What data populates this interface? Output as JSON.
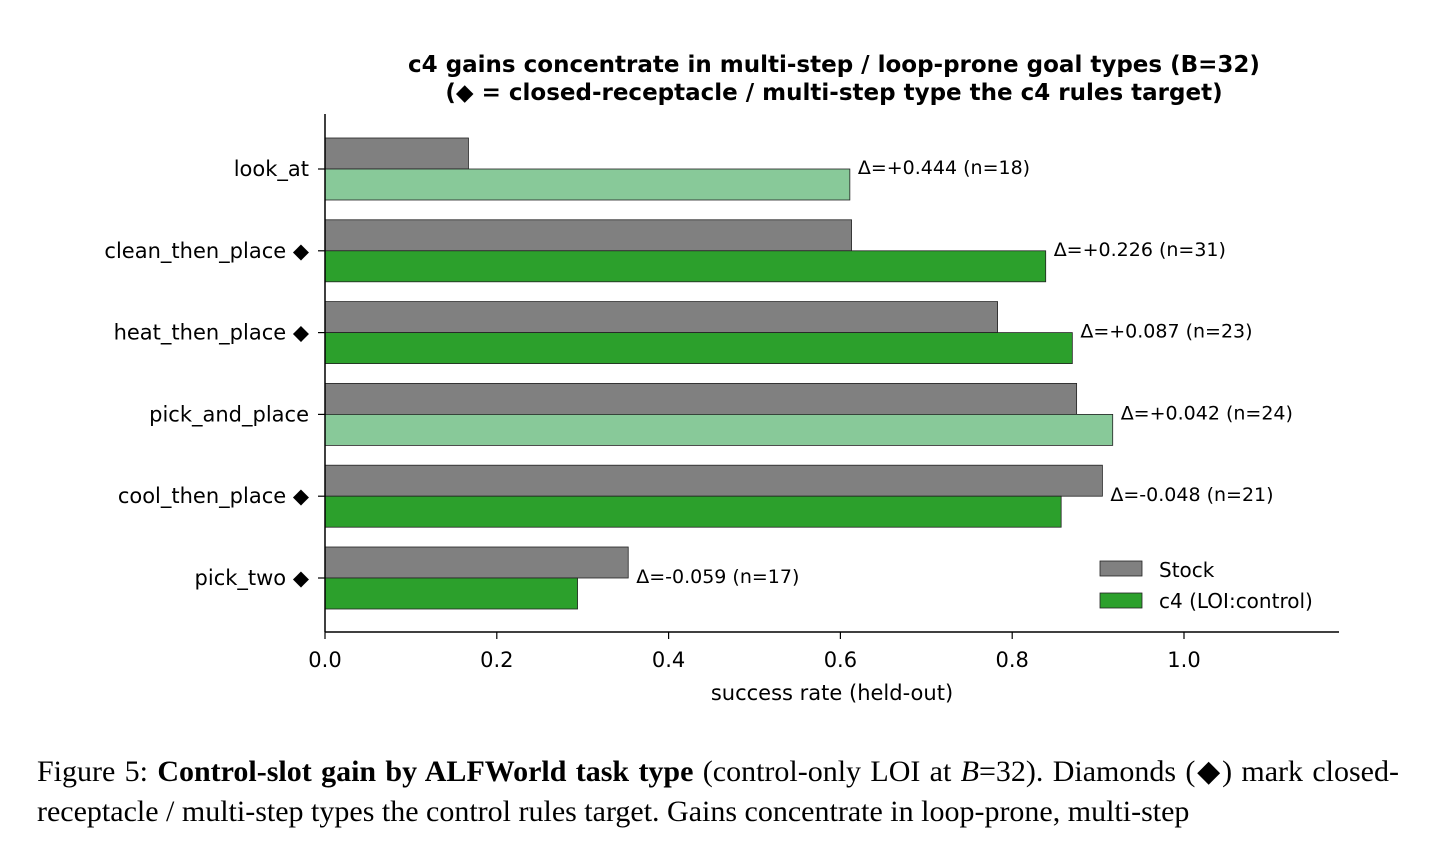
{
  "chart_data": {
    "type": "bar",
    "orientation": "horizontal",
    "title": [
      "c4 gains concentrate in multi-step / loop-prone goal types (B=32)",
      "(◆ = closed-receptacle / multi-step type the c4 rules target)"
    ],
    "xlabel": "success rate (held-out)",
    "ylabel": "",
    "xlim": [
      0,
      1.18
    ],
    "xticks": [
      0.0,
      0.2,
      0.4,
      0.6,
      0.8,
      1.0
    ],
    "xtick_labels": [
      "0.0",
      "0.2",
      "0.4",
      "0.6",
      "0.8",
      "1.0"
    ],
    "grid": false,
    "legend_position": "lower-right",
    "categories": [
      "look_at",
      "clean_then_place",
      "heat_then_place",
      "pick_and_place",
      "cool_then_place",
      "pick_two"
    ],
    "category_labels": [
      "look_at",
      "clean_then_place  ◆",
      "heat_then_place  ◆",
      "pick_and_place",
      "cool_then_place  ◆",
      "pick_two  ◆"
    ],
    "targeted": [
      false,
      true,
      true,
      false,
      true,
      true
    ],
    "series": [
      {
        "name": "Stock",
        "color": "#808080",
        "values": [
          0.167,
          0.613,
          0.783,
          0.875,
          0.905,
          0.353
        ]
      },
      {
        "name": "c4 (LOI:control)",
        "color": "#2ca02c",
        "light_color": "#88c999",
        "values": [
          0.611,
          0.839,
          0.87,
          0.917,
          0.857,
          0.294
        ]
      }
    ],
    "annotations": [
      "Δ=+0.444 (n=18)",
      "Δ=+0.226 (n=31)",
      "Δ=+0.087 (n=23)",
      "Δ=+0.042 (n=24)",
      "Δ=-0.048 (n=21)",
      "Δ=-0.059 (n=17)"
    ]
  },
  "caption": {
    "prefix": "Figure 5: ",
    "bold": "Control-slot gain by ALFWorld task type",
    "part1": " (control-only ",
    "loi": "LOI",
    "part2": " at ",
    "bvar": "B",
    "part3": "=32). Diamonds (◆) mark closed-receptacle / multi-step types the control rules target. Gains concentrate in loop-prone, multi-step"
  }
}
